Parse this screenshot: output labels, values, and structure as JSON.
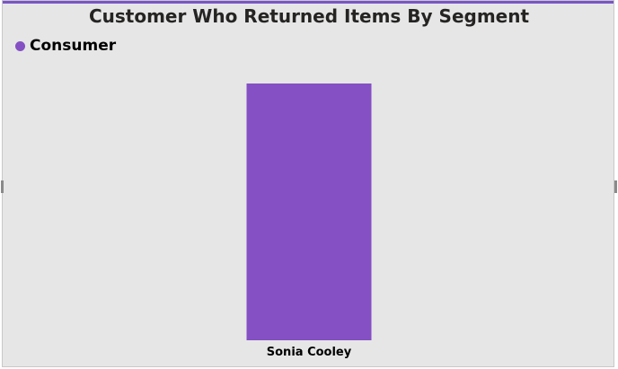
{
  "chart_data": {
    "type": "bar",
    "title": "Customer Who Returned Items By Segment",
    "categories": [
      "Sonia Cooley"
    ],
    "series": [
      {
        "name": "Consumer",
        "color": "#8450c4",
        "values": [
          1
        ]
      }
    ],
    "ylim": [
      0,
      1
    ],
    "grid": false,
    "legend_position": "top-left"
  },
  "colors": {
    "background": "#e6e6e6",
    "accent": "#7a55c6"
  }
}
